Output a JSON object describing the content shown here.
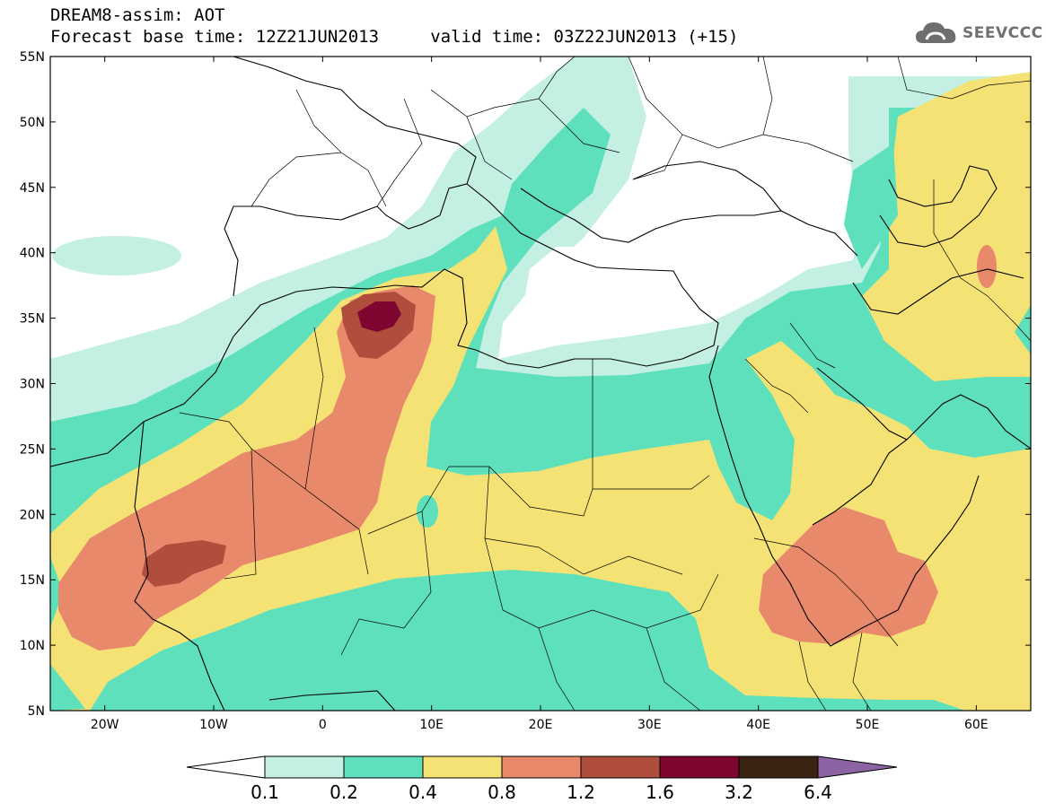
{
  "header": {
    "line1": "DREAM8-assim: AOT",
    "line2": "Forecast base time: 12Z21JUN2013     valid time: 03Z22JUN2013 (+15)",
    "brand": "SEEVCCC"
  },
  "map": {
    "lon_range": [
      -25,
      65
    ],
    "lat_range": [
      5,
      55
    ],
    "lat_ticks": [
      "55N",
      "50N",
      "45N",
      "40N",
      "35N",
      "30N",
      "25N",
      "20N",
      "15N",
      "10N",
      "5N"
    ],
    "lon_ticks": [
      "20W",
      "10W",
      "0",
      "10E",
      "20E",
      "30E",
      "40E",
      "50E",
      "60E"
    ]
  },
  "colorbar": {
    "labels": [
      "0.1",
      "0.2",
      "0.4",
      "0.8",
      "1.2",
      "1.6",
      "3.2",
      "6.4"
    ],
    "colors": [
      "#c4f0e4",
      "#5ee0bc",
      "#f4e374",
      "#e8896c",
      "#b04e3e",
      "#7e0630",
      "#3c2414",
      "#8c64a4"
    ]
  }
}
